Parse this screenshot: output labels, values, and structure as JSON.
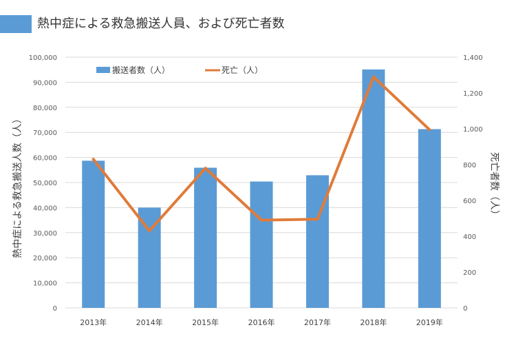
{
  "title": "熱中症による救急搬送人員、および死亡者数",
  "colors": {
    "bar": "#5b9bd5",
    "line": "#e07b39",
    "grid": "#d9d9d9"
  },
  "chart_data": {
    "type": "bar+line",
    "categories": [
      "2013年",
      "2014年",
      "2015年",
      "2016年",
      "2017年",
      "2018年",
      "2019年"
    ],
    "series": [
      {
        "name": "搬送者数（人）",
        "type": "bar",
        "axis": "left",
        "values": [
          58700,
          40000,
          55900,
          50400,
          52900,
          95100,
          71300
        ]
      },
      {
        "name": "死亡（人）",
        "type": "line",
        "axis": "right",
        "values": [
          830,
          430,
          780,
          490,
          495,
          1290,
          995
        ]
      }
    ],
    "ylabel": "熱中症による救急搬送人数（人）",
    "y2label": "死亡者数（人）",
    "ylim": [
      0,
      100000
    ],
    "y2lim": [
      0,
      1400
    ],
    "yticks": [
      "0",
      "10,000",
      "20,000",
      "30,000",
      "40,000",
      "50,000",
      "60,000",
      "70,000",
      "80,000",
      "90,000",
      "100,000"
    ],
    "y2ticks": [
      "0",
      "200",
      "400",
      "600",
      "800",
      "1,000",
      "1,200",
      "1,400"
    ],
    "grid": true,
    "legend": "top"
  }
}
